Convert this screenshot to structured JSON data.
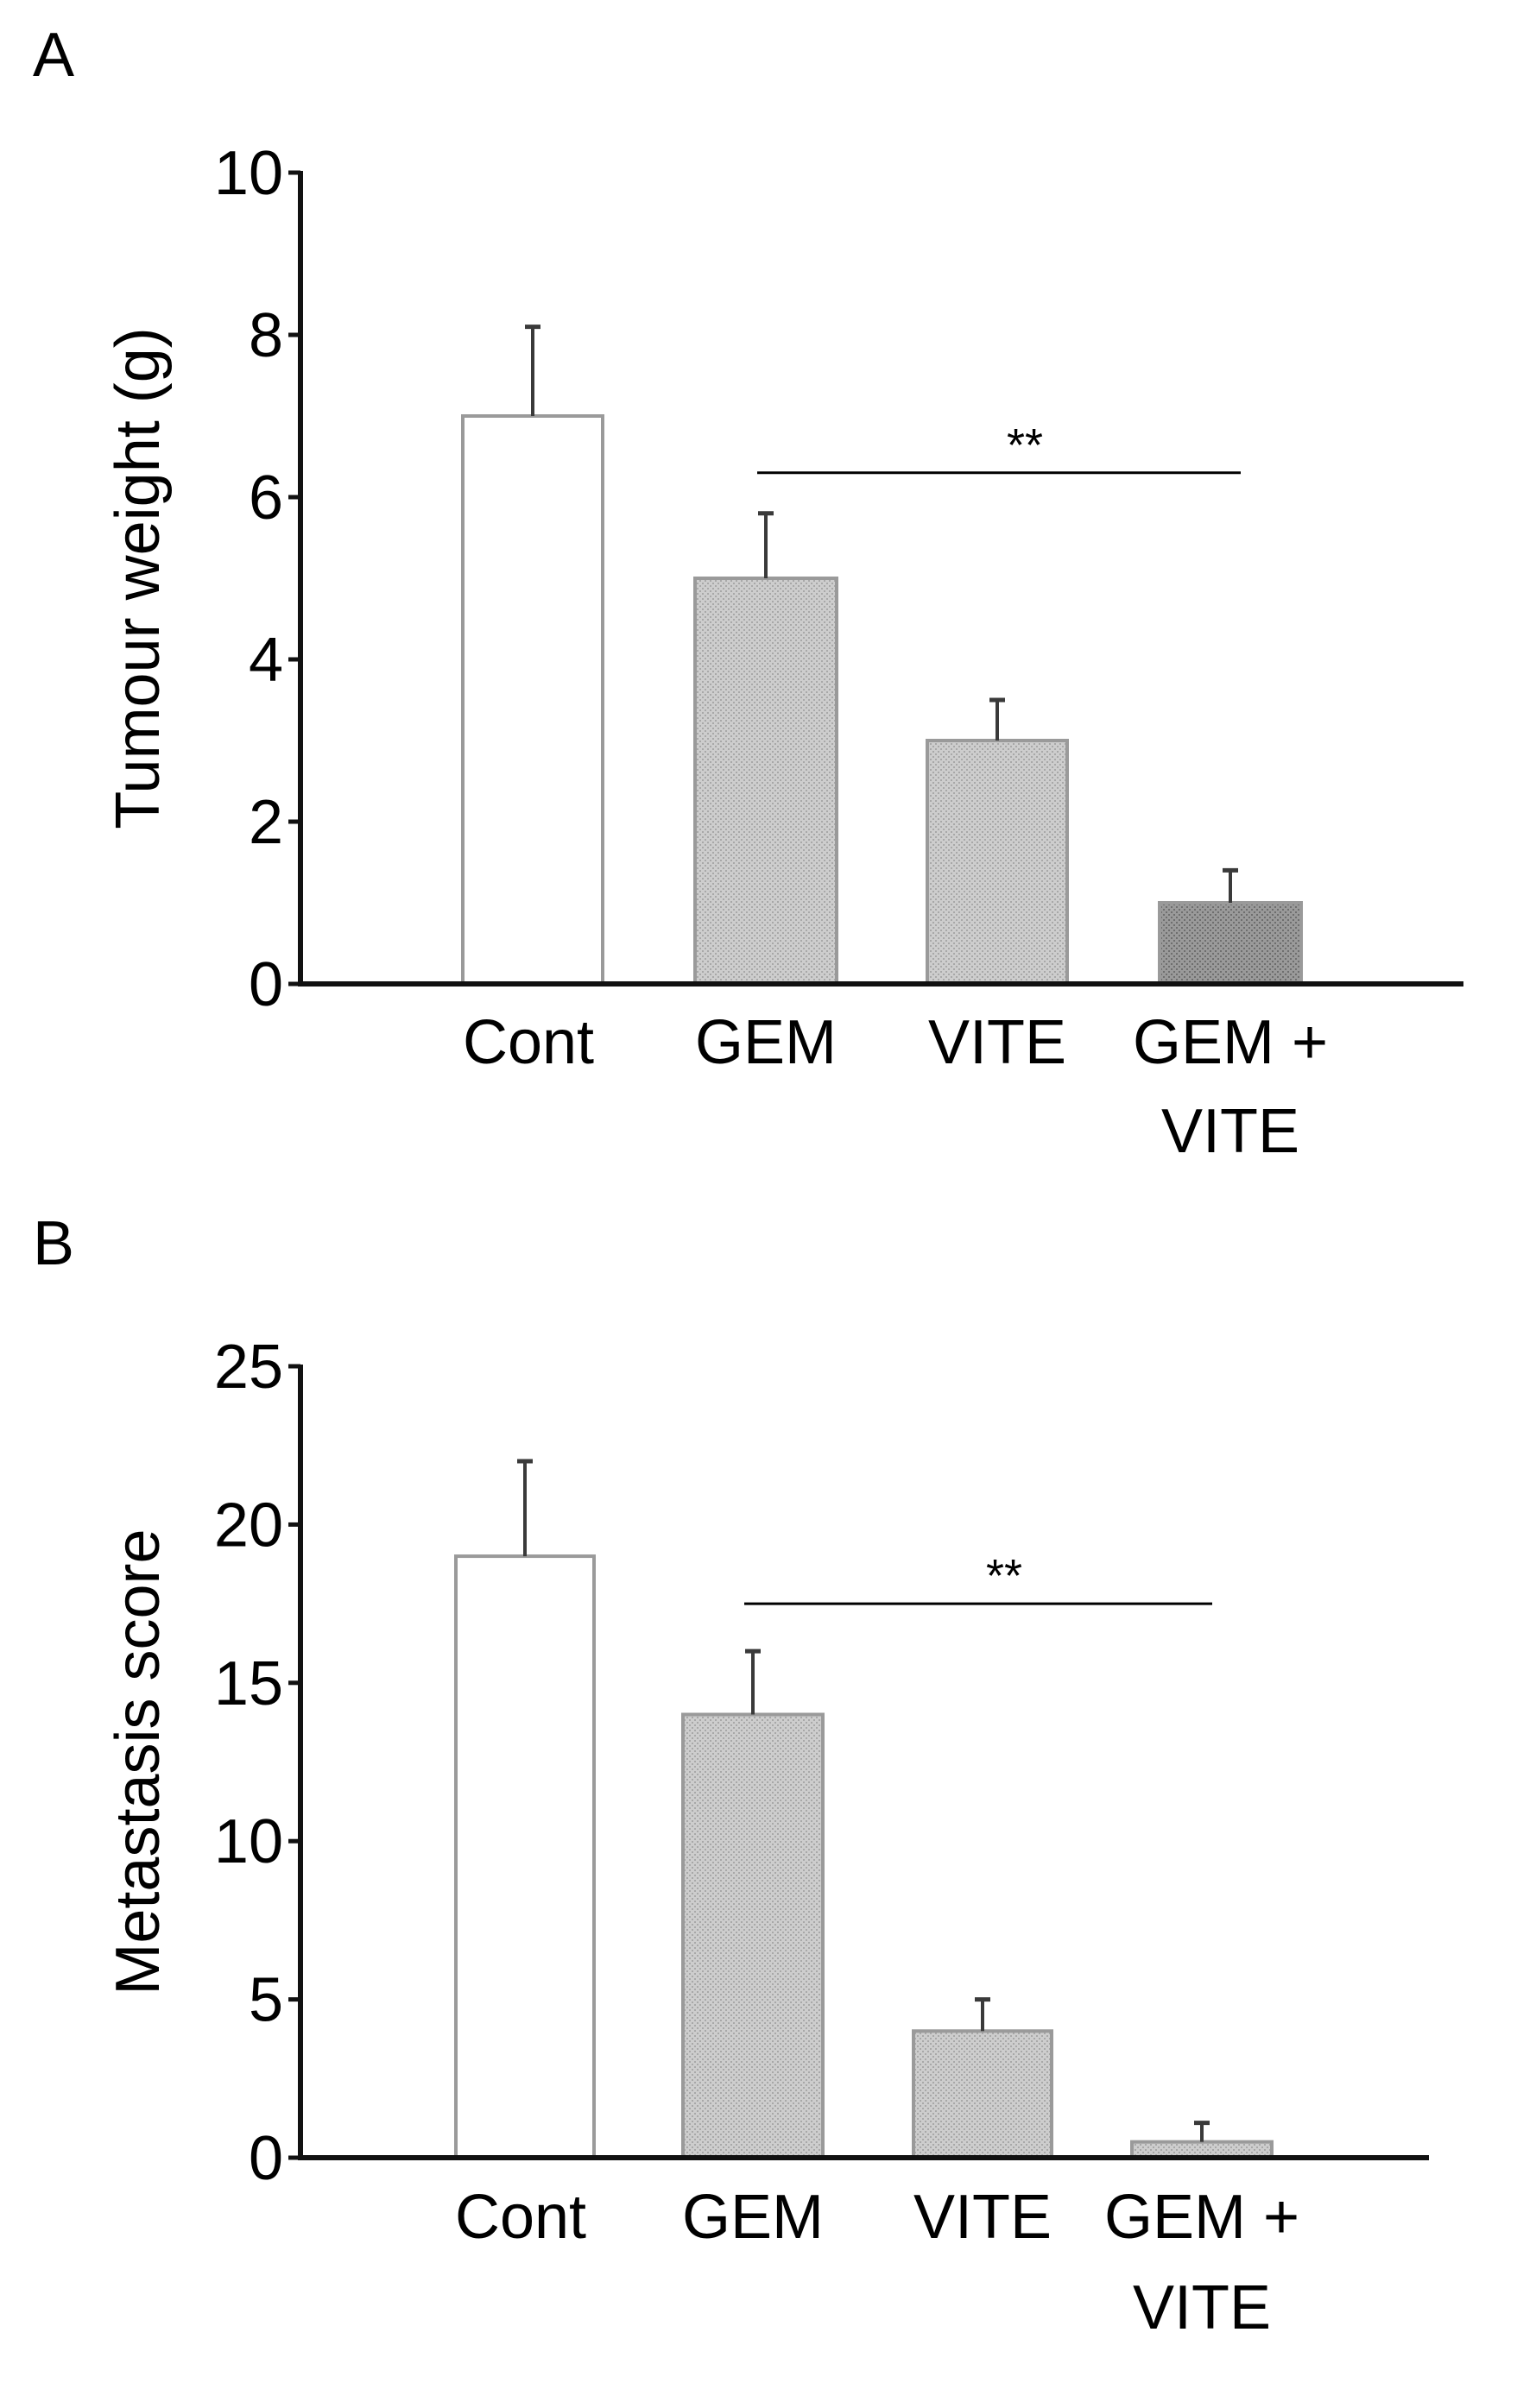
{
  "colors": {
    "axis": "#111111",
    "control_fill": "#ffffff",
    "bar_outline": "#9a9a9a",
    "treatment_fill": "#c4c4c4",
    "combo_fill": "#8f8f8f",
    "error_bar": "#3a3a3a"
  },
  "chart_data": [
    {
      "panel_label": "A",
      "type": "bar",
      "title": "",
      "xlabel": "",
      "ylabel": "Tumour weight (g)",
      "ylim": [
        0,
        10
      ],
      "yticks": [
        0,
        2,
        4,
        6,
        8,
        10
      ],
      "ytick_labels": [
        "0",
        "2",
        "4",
        "6",
        "8",
        "10"
      ],
      "categories": [
        {
          "lines": [
            "Cont"
          ]
        },
        {
          "lines": [
            "GEM"
          ]
        },
        {
          "lines": [
            "VITE"
          ]
        },
        {
          "lines": [
            "GEM +",
            "VITE"
          ]
        }
      ],
      "values": [
        7,
        5,
        3,
        1
      ],
      "errors": [
        1.1,
        0.8,
        0.5,
        0.4
      ],
      "fills": [
        "control",
        "treatment",
        "treatment",
        "combo"
      ],
      "significance": {
        "from_category": 1,
        "to_category": 3,
        "at_value": 6.3,
        "label": "**"
      },
      "grid": false
    },
    {
      "panel_label": "B",
      "type": "bar",
      "title": "",
      "xlabel": "",
      "ylabel": "Metastasis score",
      "ylim": [
        0,
        25
      ],
      "yticks": [
        0,
        5,
        10,
        15,
        20,
        25
      ],
      "ytick_labels": [
        "0",
        "5",
        "10",
        "15",
        "20",
        "25"
      ],
      "categories": [
        {
          "lines": [
            "Cont"
          ]
        },
        {
          "lines": [
            "GEM"
          ]
        },
        {
          "lines": [
            "VITE"
          ]
        },
        {
          "lines": [
            "GEM +",
            "VITE"
          ]
        }
      ],
      "values": [
        19,
        14,
        4,
        0.5
      ],
      "errors": [
        3,
        2,
        1,
        0.6
      ],
      "fills": [
        "control",
        "treatment",
        "treatment",
        "treatment"
      ],
      "significance": {
        "from_category": 1,
        "to_category": 3,
        "at_value": 17.5,
        "label": "**"
      },
      "grid": false
    }
  ]
}
